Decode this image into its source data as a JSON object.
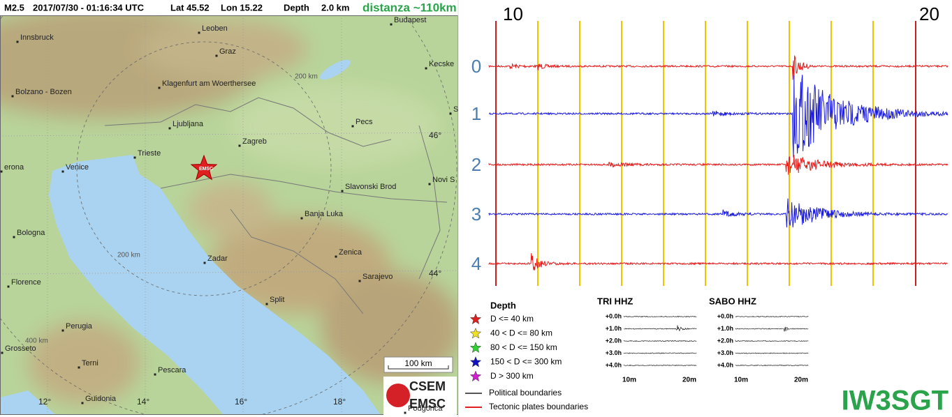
{
  "header": {
    "magnitude": "M2.5",
    "datetime": "2017/07/30 - 01:16:34 UTC",
    "lat": "Lat 45.52",
    "lon": "Lon 15.22",
    "depth_label": "Depth",
    "depth": "2.0 km",
    "distance": "distanza ~110km"
  },
  "map": {
    "cities": [
      "Innsbruck",
      "Leoben",
      "Budapest",
      "Graz",
      "Kecske",
      "Bolzano - Bozen",
      "Klagenfurt am Woerthersee",
      "Ljubljana",
      "Pecs",
      "S",
      "Zagreb",
      "Trieste",
      "erona",
      "Venice",
      "Slavonski Brod",
      "Novi S",
      "Banja Luka",
      "Bologna",
      "Zenica",
      "Zadar",
      "Florence",
      "Sarajevo",
      "Split",
      "Perugia",
      "Grosseto",
      "Terni",
      "Pescara",
      "Podgorica",
      "Guidonia"
    ],
    "rings": [
      "200 km",
      "200 km",
      "400 km"
    ],
    "lat_labels": [
      "46°",
      "44°"
    ],
    "lon_labels": [
      "12°",
      "14°",
      "16°",
      "18°"
    ],
    "scale": "100 km",
    "epicenter": "EMSC",
    "logo": [
      "CSEM",
      "EMSC"
    ]
  },
  "legend": {
    "title": "Depth",
    "items": [
      "D <= 40 km",
      "40 < D <= 80 km",
      "80 < D <= 150 km",
      "150 < D <= 300 km",
      "D > 300 km"
    ],
    "lines": [
      "Political boundaries",
      "Tectonic plates boundaries"
    ]
  },
  "seismogram": {
    "time_labels": [
      "10",
      "20"
    ],
    "rows": [
      "0",
      "1",
      "2",
      "3",
      "4"
    ],
    "station": "IW3SGT"
  },
  "panels": [
    {
      "title": "TRI HHZ",
      "rows": [
        "+0.0h",
        "+1.0h",
        "+2.0h",
        "+3.0h",
        "+4.0h"
      ],
      "x_labels": [
        "10m",
        "20m"
      ]
    },
    {
      "title": "SABO HHZ",
      "rows": [
        "+0.0h",
        "+1.0h",
        "+2.0h",
        "+3.0h",
        "+4.0h"
      ],
      "x_labels": [
        "10m",
        "20m"
      ]
    }
  ]
}
